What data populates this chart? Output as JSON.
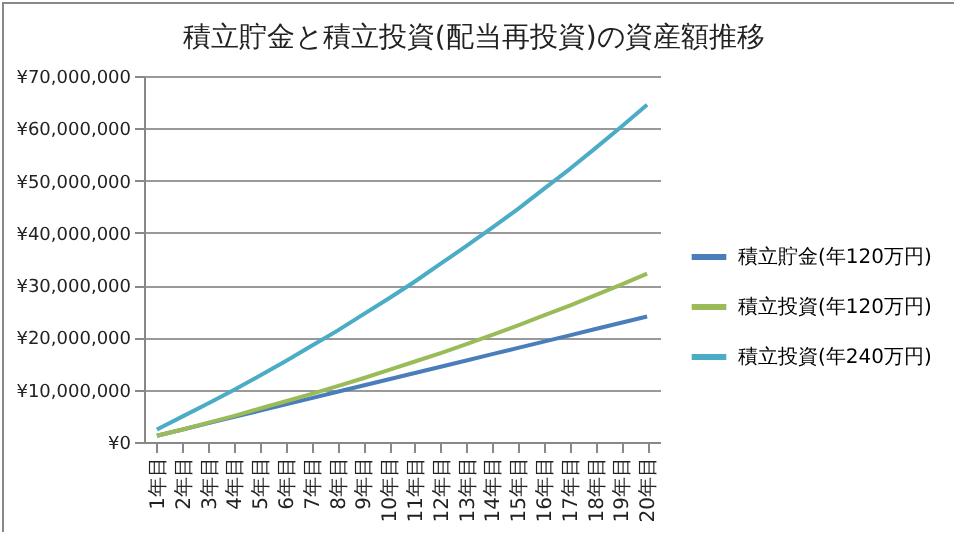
{
  "chart_data": {
    "type": "line",
    "title": "積立貯金と積立投資(配当再投資)の資産額推移",
    "categories": [
      "1年目",
      "2年目",
      "3年目",
      "4年目",
      "5年目",
      "6年目",
      "7年目",
      "8年目",
      "9年目",
      "10年目",
      "11年目",
      "12年目",
      "13年目",
      "14年目",
      "15年目",
      "16年目",
      "17年目",
      "18年目",
      "19年目",
      "20年目"
    ],
    "series": [
      {
        "name": "積立貯金(年120万円)",
        "color": "#4a7ebb",
        "values": [
          1200000,
          2400000,
          3600000,
          4800000,
          6000000,
          7200000,
          8400000,
          9600000,
          10800000,
          12000000,
          13200000,
          14400000,
          15600000,
          16800000,
          18000000,
          19200000,
          20400000,
          21600000,
          22800000,
          24000000
        ]
      },
      {
        "name": "積立投資(年120万円)",
        "color": "#9bbb59",
        "values": [
          1200000,
          2400000,
          3700000,
          5000000,
          6400000,
          7800000,
          9200000,
          10700000,
          12200000,
          13800000,
          15400000,
          17000000,
          18700000,
          20500000,
          22300000,
          24200000,
          26100000,
          28100000,
          30100000,
          32200000
        ]
      },
      {
        "name": "積立投資(年240万円)",
        "color": "#4bacc6",
        "values": [
          2400000,
          4900000,
          7400000,
          10000000,
          12700000,
          15500000,
          18400000,
          21300000,
          24400000,
          27500000,
          30700000,
          34100000,
          37500000,
          41000000,
          44600000,
          48400000,
          52200000,
          56200000,
          60300000,
          64500000
        ]
      }
    ],
    "ylim": [
      0,
      70000000
    ],
    "yticks": [
      {
        "value": 0,
        "label": "¥0"
      },
      {
        "value": 10000000,
        "label": "¥10,000,000"
      },
      {
        "value": 20000000,
        "label": "¥20,000,000"
      },
      {
        "value": 30000000,
        "label": "¥30,000,000"
      },
      {
        "value": 40000000,
        "label": "¥40,000,000"
      },
      {
        "value": 50000000,
        "label": "¥50,000,000"
      },
      {
        "value": 60000000,
        "label": "¥60,000,000"
      },
      {
        "value": 70000000,
        "label": "¥70,000,000"
      }
    ],
    "grid": "y",
    "legend": "right"
  }
}
